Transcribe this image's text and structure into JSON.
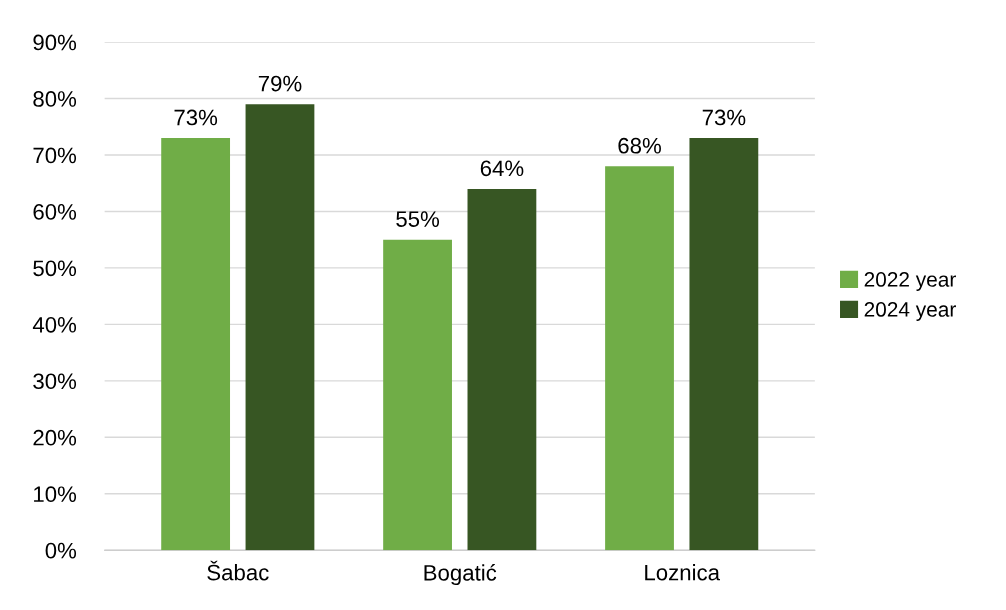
{
  "chart_data": {
    "type": "bar",
    "categories": [
      "Šabac",
      "Bogatić",
      "Loznica"
    ],
    "series": [
      {
        "name": "2022 year",
        "color": "#70ad47",
        "values": [
          73,
          55,
          68
        ],
        "value_labels": [
          "73%",
          "55%",
          "68%"
        ]
      },
      {
        "name": "2024 year",
        "color": "#375623",
        "values": [
          79,
          64,
          73
        ],
        "value_labels": [
          "79%",
          "64%",
          "73%"
        ]
      }
    ],
    "ylim": [
      0,
      90
    ],
    "yticks": [
      {
        "value": 0,
        "label": "0%"
      },
      {
        "value": 10,
        "label": "10%"
      },
      {
        "value": 20,
        "label": "20%"
      },
      {
        "value": 30,
        "label": "30%"
      },
      {
        "value": 40,
        "label": "40%"
      },
      {
        "value": 50,
        "label": "50%"
      },
      {
        "value": 60,
        "label": "60%"
      },
      {
        "value": 70,
        "label": "70%"
      },
      {
        "value": 80,
        "label": "80%"
      },
      {
        "value": 90,
        "label": "90%"
      }
    ],
    "grid": "y",
    "legend": "right"
  }
}
